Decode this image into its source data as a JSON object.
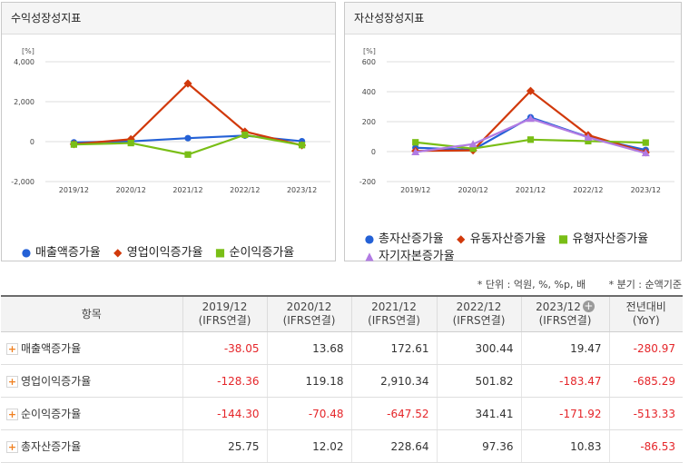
{
  "colors": {
    "blue": "#2461d6",
    "red": "#d1390b",
    "green": "#79be16",
    "purple": "#b17be3"
  },
  "left_panel": {
    "title": "수익성장성지표",
    "unit": "[%]"
  },
  "right_panel": {
    "title": "자산성장성지표",
    "unit": "[%]"
  },
  "chart_data": [
    {
      "type": "line",
      "title": "수익성장성지표",
      "ylabel": "[%]",
      "x": [
        "2019/12",
        "2020/12",
        "2021/12",
        "2022/12",
        "2023/12"
      ],
      "ylim": [
        -2000,
        4000
      ],
      "yticks": [
        "4,000",
        "2,000",
        "0",
        "-2,000"
      ],
      "ytick_values": [
        4000,
        2000,
        0,
        -2000
      ],
      "series": [
        {
          "name": "매출액증가율",
          "color": "#2461d6",
          "marker": "circle",
          "values": [
            -38.05,
            13.68,
            172.61,
            300.44,
            19.47
          ]
        },
        {
          "name": "영업이익증가율",
          "color": "#d1390b",
          "marker": "diamond",
          "values": [
            -128.36,
            119.18,
            2910.34,
            501.82,
            -183.47
          ]
        },
        {
          "name": "순이익증가율",
          "color": "#79be16",
          "marker": "square",
          "values": [
            -144.3,
            -70.48,
            -647.52,
            341.41,
            -171.92
          ]
        }
      ]
    },
    {
      "type": "line",
      "title": "자산성장성지표",
      "ylabel": "[%]",
      "x": [
        "2019/12",
        "2020/12",
        "2021/12",
        "2022/12",
        "2023/12"
      ],
      "ylim": [
        -200,
        600
      ],
      "yticks": [
        "600",
        "400",
        "200",
        "0",
        "-200"
      ],
      "ytick_values": [
        600,
        400,
        200,
        0,
        -200
      ],
      "series": [
        {
          "name": "총자산증가율",
          "color": "#2461d6",
          "marker": "circle",
          "values": [
            25.75,
            12.02,
            228.64,
            97.36,
            10.83
          ]
        },
        {
          "name": "유동자산증가율",
          "color": "#d1390b",
          "marker": "diamond",
          "values": [
            5,
            8,
            405,
            110,
            -5
          ]
        },
        {
          "name": "유형자산증가율",
          "color": "#79be16",
          "marker": "square",
          "values": [
            62,
            20,
            80,
            70,
            60
          ]
        },
        {
          "name": "자기자본증가율",
          "color": "#b17be3",
          "marker": "triangle",
          "values": [
            -3,
            50,
            220,
            95,
            -10
          ]
        }
      ]
    }
  ],
  "notes": {
    "unit": "* 단위 : 억원, %, %p, 배",
    "basis": "* 분기 : 순액기준"
  },
  "table": {
    "item_header": "항목",
    "columns": [
      {
        "period": "2019/12",
        "basis": "(IFRS연결)"
      },
      {
        "period": "2020/12",
        "basis": "(IFRS연결)"
      },
      {
        "period": "2021/12",
        "basis": "(IFRS연결)"
      },
      {
        "period": "2022/12",
        "basis": "(IFRS연결)"
      },
      {
        "period": "2023/12",
        "basis": "(IFRS연결)"
      }
    ],
    "yoy_header": "전년대비",
    "yoy_sub": "(YoY)",
    "rows": [
      {
        "label": "매출액증가율",
        "values": [
          "-38.05",
          "13.68",
          "172.61",
          "300.44",
          "19.47"
        ],
        "yoy": "-280.97"
      },
      {
        "label": "영업이익증가율",
        "values": [
          "-128.36",
          "119.18",
          "2,910.34",
          "501.82",
          "-183.47"
        ],
        "yoy": "-685.29"
      },
      {
        "label": "순이익증가율",
        "values": [
          "-144.30",
          "-70.48",
          "-647.52",
          "341.41",
          "-171.92"
        ],
        "yoy": "-513.33"
      },
      {
        "label": "총자산증가율",
        "values": [
          "25.75",
          "12.02",
          "228.64",
          "97.36",
          "10.83"
        ],
        "yoy": "-86.53"
      }
    ]
  }
}
